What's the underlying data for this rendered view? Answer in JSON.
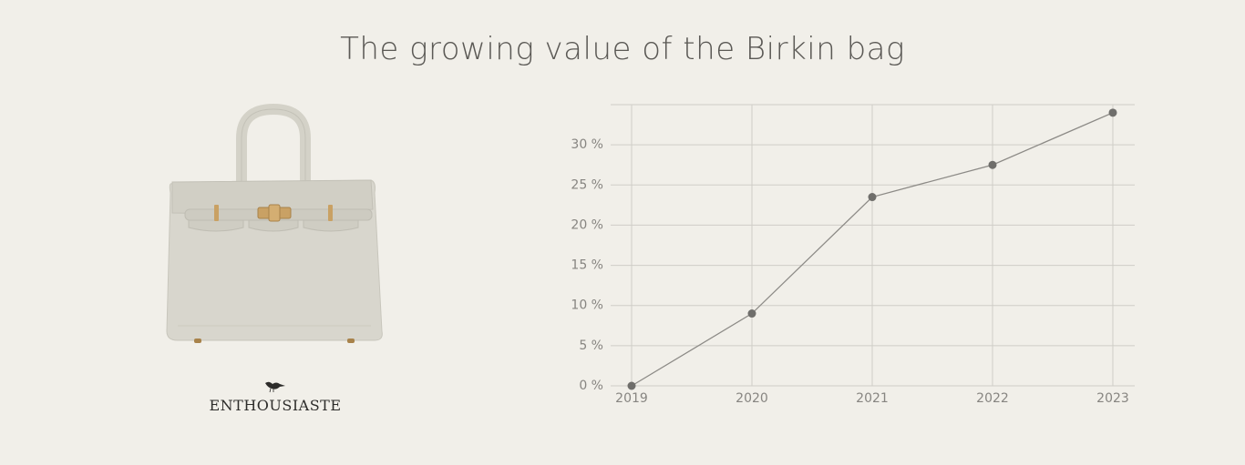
{
  "page": {
    "title": "The growing value of the Birkin bag"
  },
  "brand": {
    "name": "ENTHOUSIASTE",
    "logo_icon": "bird-icon"
  },
  "product_image": {
    "icon": "handbag-icon",
    "colors": {
      "body": "#d8d6cd",
      "hardware": "#c9a164"
    }
  },
  "colors": {
    "background": "#f1efe9",
    "line": "#8c8a86",
    "marker": "#6f6e6b",
    "grid": "#cfcdc7"
  },
  "chart_data": {
    "type": "line",
    "title": "The growing value of the Birkin bag",
    "x": [
      "2019",
      "2020",
      "2021",
      "2022",
      "2023"
    ],
    "series": [
      {
        "values": [
          0,
          9,
          23.5,
          27.5,
          34
        ]
      }
    ],
    "ylim": [
      0,
      35
    ],
    "y_ticks": [
      0,
      5,
      10,
      15,
      20,
      25,
      30
    ],
    "y_tick_labels": [
      "0 %",
      "5 %",
      "10 %",
      "15 %",
      "20 %",
      "25 %",
      "30 %"
    ],
    "xlabel": "",
    "ylabel": "",
    "grid": true,
    "legend": "none"
  }
}
